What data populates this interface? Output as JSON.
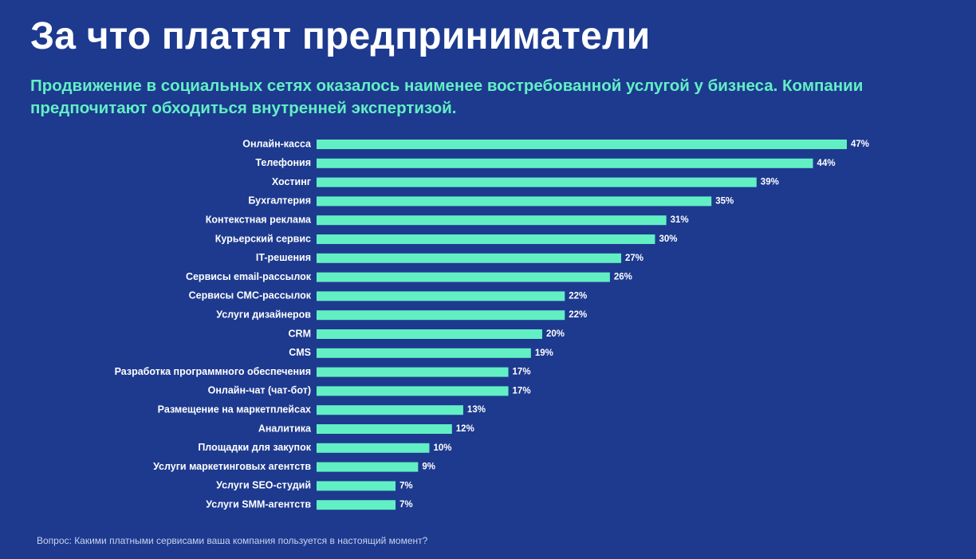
{
  "title": "За что платят предприниматели",
  "subtitle": "Продвижение в социальных сетях оказалось наименее востребованной услугой у бизнеса. Компании предпочитают обходиться внутренней экспертизой.",
  "footnote": "Вопрос:  Какими платными сервисами ваша компания пользуется в настоящий момент?",
  "colors": {
    "background": "#1d3a8f",
    "bar": "#62efc4",
    "title": "#ffffff",
    "subtitle": "#62efc4"
  },
  "chart_data": {
    "type": "bar",
    "orientation": "horizontal",
    "value_suffix": "%",
    "categories": [
      "Онлайн-касса",
      "Телефония",
      "Хостинг",
      "Бухгалтерия",
      "Контекстная реклама",
      "Курьерский сервис",
      "IT-решения",
      "Сервисы email-рассылок",
      "Сервисы СМС-рассылок",
      "Услуги дизайнеров",
      "CRM",
      "CMS",
      "Разработка программного обеспечения",
      "Онлайн-чат (чат-бот)",
      "Размещение на маркетплейсах",
      "Аналитика",
      "Площадки для закупок",
      "Услуги маркетинговых агентств",
      "Услуги SEO-студий",
      "Услуги SMM-агентств"
    ],
    "values": [
      47,
      44,
      39,
      35,
      31,
      30,
      27,
      26,
      22,
      22,
      20,
      19,
      17,
      17,
      13,
      12,
      10,
      9,
      7,
      7
    ],
    "xlim": [
      0,
      47
    ],
    "grid": false,
    "legend": "none"
  }
}
